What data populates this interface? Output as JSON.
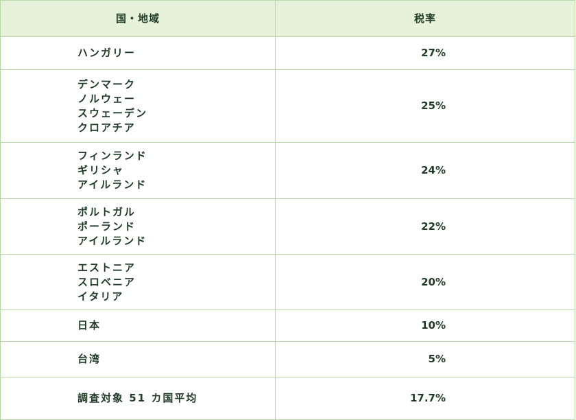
{
  "table": {
    "header": {
      "country": "国・地域",
      "rate": "税率"
    },
    "rows": [
      {
        "countries": [
          "ハンガリー"
        ],
        "rate": "27%"
      },
      {
        "countries": [
          "デンマーク",
          "ノルウェー",
          "スウェーデン",
          "クロアチア"
        ],
        "rate": "25%"
      },
      {
        "countries": [
          "フィンランド",
          "ギリシャ",
          "アイルランド"
        ],
        "rate": "24%"
      },
      {
        "countries": [
          "ポルトガル",
          "ポーランド",
          "アイルランド"
        ],
        "rate": "22%"
      },
      {
        "countries": [
          "エストニア",
          "スロベニア",
          "イタリア"
        ],
        "rate": "20%"
      },
      {
        "countries": [
          "日本"
        ],
        "rate": "10%"
      },
      {
        "countries": [
          "台湾"
        ],
        "rate": "5%"
      },
      {
        "countries": [
          "調査対象 51 カ国平均"
        ],
        "rate": "17.7%"
      }
    ]
  },
  "colors": {
    "header_bg": "#e6f2d9",
    "border": "#b7d8a6",
    "text": "#1f3a26"
  }
}
